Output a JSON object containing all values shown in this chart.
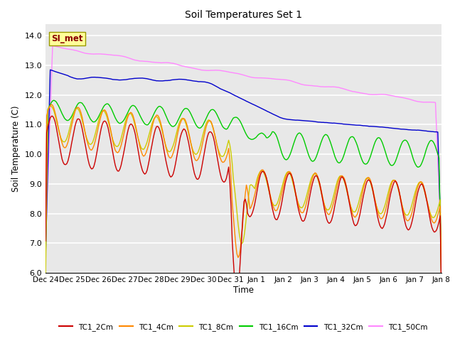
{
  "title": "Soil Temperatures Set 1",
  "ylabel": "Soil Temperature (C)",
  "xlabel": "Time",
  "ylim": [
    6.0,
    14.4
  ],
  "yticks": [
    6.0,
    7.0,
    8.0,
    9.0,
    10.0,
    11.0,
    12.0,
    13.0,
    14.0
  ],
  "bg_color": "#e8e8e8",
  "grid_color": "white",
  "annotation_text": "SI_met",
  "annotation_color": "#8B0000",
  "annotation_bg": "#FFFF99",
  "series_colors": {
    "TC1_2Cm": "#cc0000",
    "TC1_4Cm": "#ff8800",
    "TC1_8Cm": "#cccc00",
    "TC1_16Cm": "#00cc00",
    "TC1_32Cm": "#0000cc",
    "TC1_50Cm": "#ff88ff"
  },
  "num_points": 336,
  "x_start": 0,
  "x_end": 15,
  "xtick_positions": [
    0,
    1,
    2,
    3,
    4,
    5,
    6,
    7,
    8,
    9,
    10,
    11,
    12,
    13,
    14,
    15
  ],
  "xtick_labels": [
    "Dec 24",
    "Dec 25",
    "Dec 26",
    "Dec 27",
    "Dec 28",
    "Dec 29",
    "Dec 30",
    "Dec 31",
    "Jan 1",
    "Jan 2",
    "Jan 3",
    "Jan 4",
    "Jan 5",
    "Jan 6",
    "Jan 7",
    "Jan 8"
  ]
}
